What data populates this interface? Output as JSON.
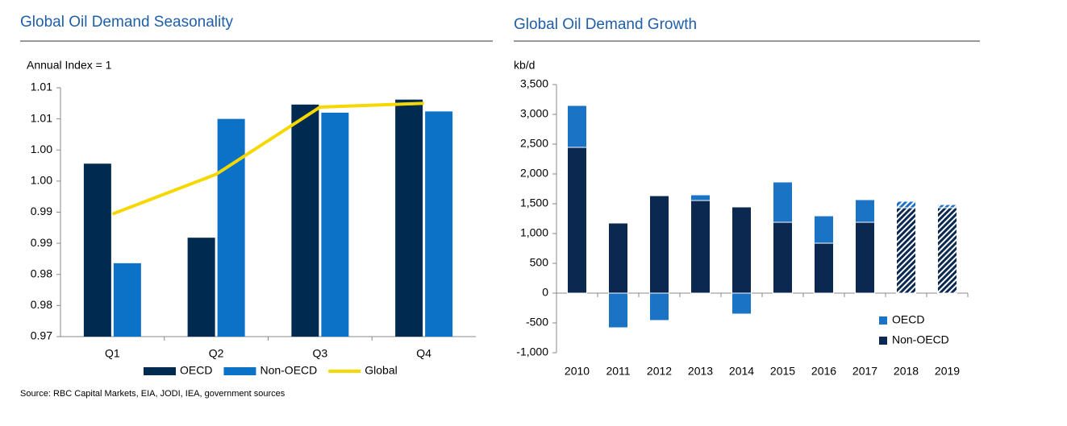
{
  "chart_data": [
    {
      "type": "bar",
      "title": "Global Oil Demand Seasonality",
      "ylabel": "Annual Index = 1",
      "categories": [
        "Q1",
        "Q2",
        "Q3",
        "Q4"
      ],
      "series": [
        {
          "name": "OECD",
          "color": "#002a50",
          "type": "bar",
          "values": [
            0.9978,
            0.9859,
            1.0073,
            1.0081
          ]
        },
        {
          "name": "Non-OECD",
          "color": "#0b72c7",
          "type": "bar",
          "values": [
            0.9818,
            1.005,
            1.006,
            1.0062
          ]
        },
        {
          "name": "Global",
          "color": "#f5d800",
          "type": "line",
          "values": [
            0.9897,
            0.9961,
            1.0069,
            1.0075
          ]
        }
      ],
      "ylim": [
        0.97,
        1.01
      ],
      "yticks": [
        0.97,
        {
          "value": 0.975,
          "label": "0.98"
        },
        0.98,
        {
          "value": 0.985,
          "label": "0.99"
        },
        0.99,
        {
          "value": 0.995,
          "label": "1.00"
        },
        {
          "value": 1,
          "label": "1.00"
        },
        {
          "value": 1.005,
          "label": "1.01"
        },
        1.01
      ],
      "legend": "bottom"
    },
    {
      "type": "stacked_bar",
      "title": "Global Oil Demand Growth",
      "ylabel": "kb/d",
      "categories": [
        "2010",
        "2011",
        "2012",
        "2013",
        "2014",
        "2015",
        "2016",
        "2017",
        "2018",
        "2019"
      ],
      "series": [
        {
          "name": "OECD",
          "color": "#1a73c4",
          "values": [
            703,
            -581,
            -459,
            95,
            -351,
            676,
            459,
            379,
            109,
            54
          ]
        },
        {
          "name": "Non-OECD",
          "color": "#0a2850",
          "values": [
            2446,
            1176,
            1635,
            1554,
            1446,
            1189,
            838,
            1189,
            1432,
            1432
          ]
        }
      ],
      "hatched": [
        false,
        false,
        false,
        false,
        false,
        false,
        false,
        false,
        true,
        true
      ],
      "ylim": [
        -1000,
        3500
      ],
      "yticks": [
        {
          "value": -1000,
          "label": "-1,000"
        },
        -500,
        0,
        500,
        {
          "value": 1000,
          "label": "1,000"
        },
        {
          "value": 1500,
          "label": "1,500"
        },
        {
          "value": 2000,
          "label": "2,000"
        },
        {
          "value": 2500,
          "label": "2,500"
        },
        {
          "value": 3000,
          "label": "3,000"
        },
        {
          "value": 3500,
          "label": "3,500"
        }
      ],
      "legend": "lower right"
    }
  ],
  "source": "Source: RBC Capital Markets, EIA, JODI, IEA, government sources"
}
